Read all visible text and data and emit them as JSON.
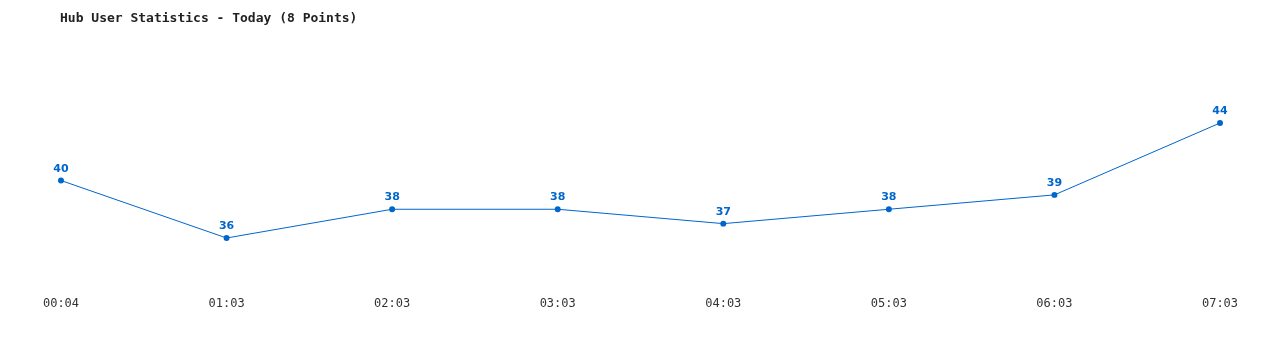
{
  "chart_data": {
    "type": "line",
    "title": "Hub User Statistics - Today (8 Points)",
    "categories": [
      "00:04",
      "01:03",
      "02:03",
      "03:03",
      "04:03",
      "05:03",
      "06:03",
      "07:03"
    ],
    "series": [
      {
        "color": "#0066cc",
        "values": [
          40,
          36,
          38,
          38,
          37,
          38,
          39,
          44
        ]
      }
    ],
    "data_labels": true,
    "marker": "circle"
  }
}
